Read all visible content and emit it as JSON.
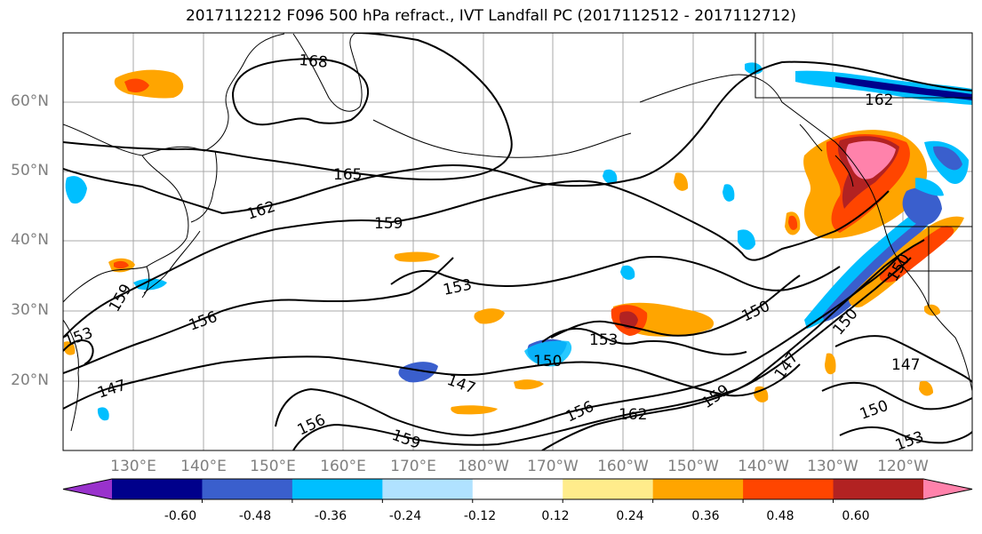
{
  "title": "2017112212 F096 500 hPa refract., IVT Landfall PC (2017112512 - 2017112712)",
  "lat_labels": [
    "60°N",
    "50°N",
    "40°N",
    "30°N",
    "20°N"
  ],
  "lon_labels": [
    "130°E",
    "140°E",
    "150°E",
    "160°E",
    "170°E",
    "180°W",
    "170°W",
    "160°W",
    "150°W",
    "140°W",
    "130°W",
    "120°W"
  ],
  "contour_labels": [
    "168",
    "165",
    "162",
    "159",
    "153",
    "156",
    "150",
    "153",
    "150",
    "147",
    "147",
    "156",
    "159",
    "156",
    "162",
    "159",
    "150",
    "147",
    "153",
    "150",
    "147",
    "150",
    "153",
    "162",
    "159"
  ],
  "colorbar": {
    "colors": [
      "#9932cc",
      "#00008b",
      "#3a5fcd",
      "#00bfff",
      "#b0e2ff",
      "#ffffff",
      "#ffec8b",
      "#ffa500",
      "#ff4500",
      "#b22222",
      "#ff82ab"
    ],
    "tick_labels": [
      "-0.60",
      "-0.48",
      "-0.36",
      "-0.24",
      "-0.12",
      "0.12",
      "0.24",
      "0.36",
      "0.48",
      "0.60"
    ]
  }
}
